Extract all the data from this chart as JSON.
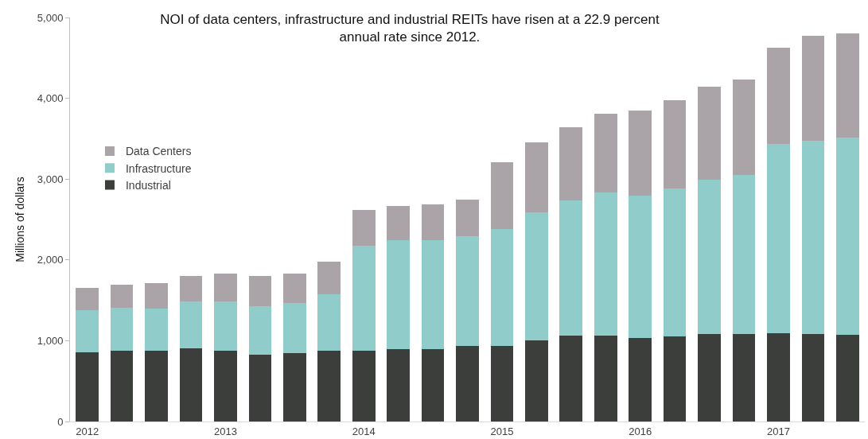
{
  "chart_data": {
    "type": "bar",
    "stacked": true,
    "title": "NOI of data centers, infrastructure and industrial REITs have risen at a 22.9 percent annual rate since 2012.",
    "ylabel": "Millions of dollars",
    "categories": [
      "2012",
      null,
      null,
      null,
      "2013",
      null,
      null,
      null,
      "2014",
      null,
      null,
      null,
      "2015",
      null,
      null,
      null,
      "2016",
      null,
      null,
      null,
      "2017",
      null,
      null
    ],
    "series": [
      {
        "name": "Industrial",
        "color": "#3c3e3b",
        "values": [
          860,
          880,
          880,
          910,
          880,
          830,
          850,
          880,
          880,
          900,
          900,
          940,
          940,
          1000,
          1060,
          1060,
          1030,
          1050,
          1080,
          1080,
          1090,
          1080,
          1070
        ]
      },
      {
        "name": "Infrastructure",
        "color": "#90ccc9",
        "values": [
          520,
          530,
          520,
          580,
          610,
          600,
          620,
          690,
          1300,
          1340,
          1340,
          1350,
          1440,
          1590,
          1680,
          1770,
          1770,
          1830,
          1910,
          1970,
          2350,
          2390,
          2440
        ]
      },
      {
        "name": "Data Centers",
        "color": "#aaa4a8",
        "values": [
          270,
          280,
          310,
          310,
          340,
          370,
          360,
          410,
          440,
          430,
          450,
          460,
          830,
          860,
          900,
          980,
          1050,
          1100,
          1150,
          1180,
          1190,
          1300,
          1290
        ]
      }
    ],
    "ylim": [
      0,
      5000
    ],
    "yticks": [
      0,
      {
        "value": 1000,
        "label": "1,000"
      },
      {
        "value": 2000,
        "label": "2,000"
      },
      {
        "value": 3000,
        "label": "3,000"
      },
      {
        "value": 4000,
        "label": "4,000"
      },
      {
        "value": 5000,
        "label": "5,000"
      }
    ],
    "grid": false,
    "legend": "top left"
  }
}
